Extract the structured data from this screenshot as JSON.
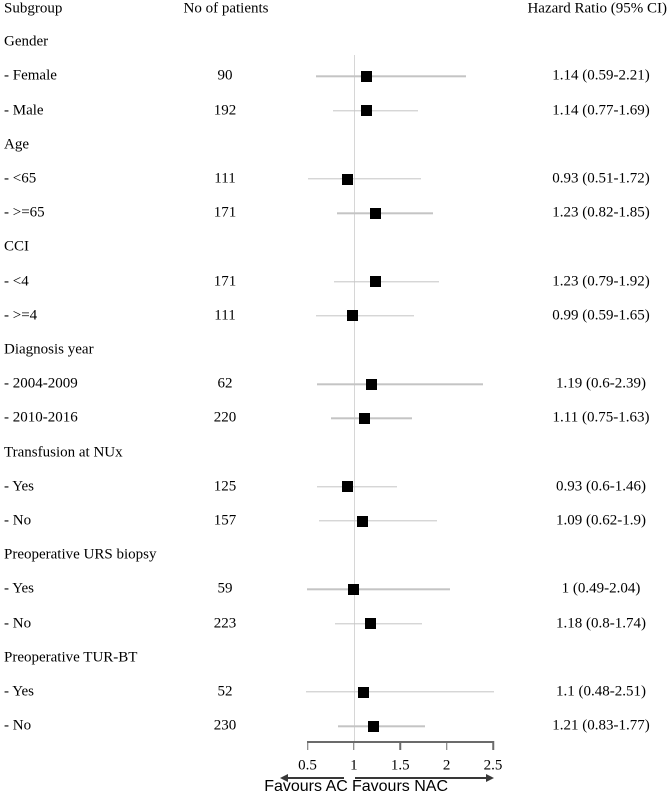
{
  "figure": {
    "columns": {
      "subgroup": "Subgroup",
      "patients": "No of patients",
      "hazard_ratio": "Hazard Ratio (95% CI)"
    }
  },
  "chart_data": {
    "type": "scatter",
    "subtype": "forest-plot",
    "x_axis": {
      "range": [
        0.5,
        2.5
      ],
      "ticks": [
        0.5,
        1,
        1.5,
        2,
        2.5
      ],
      "tick_labels": [
        "0.5",
        "1",
        "1.5",
        "2",
        "2.5"
      ],
      "reference_line": 1,
      "grid": false
    },
    "footer": {
      "left_label": "Favours AC",
      "right_label": "Favours NAC"
    },
    "rows": [
      {
        "kind": "group",
        "label": "Gender"
      },
      {
        "kind": "item",
        "label": "- Female",
        "n": "90",
        "hr": 1.14,
        "lo": 0.59,
        "hi": 2.21,
        "text": "1.14 (0.59-2.21)"
      },
      {
        "kind": "item",
        "label": "- Male",
        "n": "192",
        "hr": 1.14,
        "lo": 0.77,
        "hi": 1.69,
        "text": "1.14 (0.77-1.69)"
      },
      {
        "kind": "group",
        "label": "Age"
      },
      {
        "kind": "item",
        "label": "- <65",
        "n": "111",
        "hr": 0.93,
        "lo": 0.51,
        "hi": 1.72,
        "text": "0.93 (0.51-1.72)"
      },
      {
        "kind": "item",
        "label": "- >=65",
        "n": "171",
        "hr": 1.23,
        "lo": 0.82,
        "hi": 1.85,
        "text": "1.23 (0.82-1.85)"
      },
      {
        "kind": "group",
        "label": "CCI"
      },
      {
        "kind": "item",
        "label": "- <4",
        "n": "171",
        "hr": 1.23,
        "lo": 0.79,
        "hi": 1.92,
        "text": "1.23 (0.79-1.92)"
      },
      {
        "kind": "item",
        "label": "- >=4",
        "n": "111",
        "hr": 0.99,
        "lo": 0.59,
        "hi": 1.65,
        "text": "0.99 (0.59-1.65)"
      },
      {
        "kind": "group",
        "label": "Diagnosis year"
      },
      {
        "kind": "item",
        "label": "- 2004-2009",
        "n": "62",
        "hr": 1.19,
        "lo": 0.6,
        "hi": 2.39,
        "text": "1.19 (0.6-2.39)"
      },
      {
        "kind": "item",
        "label": "- 2010-2016",
        "n": "220",
        "hr": 1.11,
        "lo": 0.75,
        "hi": 1.63,
        "text": "1.11 (0.75-1.63)"
      },
      {
        "kind": "group",
        "label": "Transfusion at NUx"
      },
      {
        "kind": "item",
        "label": "- Yes",
        "n": "125",
        "hr": 0.93,
        "lo": 0.6,
        "hi": 1.46,
        "text": "0.93 (0.6-1.46)"
      },
      {
        "kind": "item",
        "label": "- No",
        "n": "157",
        "hr": 1.09,
        "lo": 0.62,
        "hi": 1.9,
        "text": "1.09 (0.62-1.9)"
      },
      {
        "kind": "group",
        "label": "Preoperative URS biopsy"
      },
      {
        "kind": "item",
        "label": "- Yes",
        "n": "59",
        "hr": 1.0,
        "lo": 0.49,
        "hi": 2.04,
        "text": "1 (0.49-2.04)"
      },
      {
        "kind": "item",
        "label": "- No",
        "n": "223",
        "hr": 1.18,
        "lo": 0.8,
        "hi": 1.74,
        "text": "1.18 (0.8-1.74)"
      },
      {
        "kind": "group",
        "label": "Preoperative TUR-BT"
      },
      {
        "kind": "item",
        "label": "- Yes",
        "n": "52",
        "hr": 1.1,
        "lo": 0.48,
        "hi": 2.51,
        "text": "1.1 (0.48-2.51)"
      },
      {
        "kind": "item",
        "label": "- No",
        "n": "230",
        "hr": 1.21,
        "lo": 0.83,
        "hi": 1.77,
        "text": "1.21 (0.83-1.77)"
      }
    ]
  },
  "colors": {
    "marker": "#000000",
    "ci_line": "#c4c4c4",
    "reference_line": "#d6d6d6",
    "axis": "#6b6b6b",
    "arrow": "#383838",
    "text": "#000000"
  }
}
